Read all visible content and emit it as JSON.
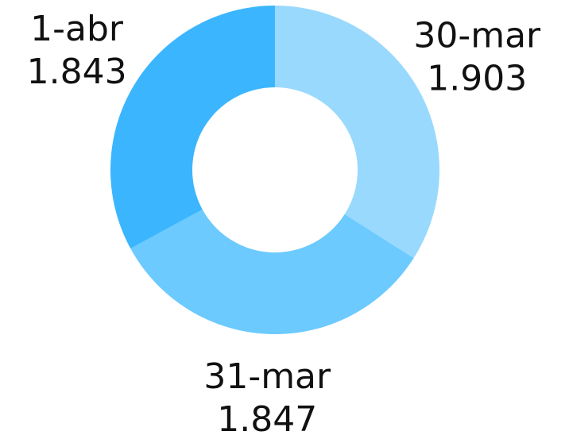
{
  "chart_data": {
    "type": "pie",
    "categories": [
      "30-mar",
      "31-mar",
      "1-abr"
    ],
    "values": [
      1903,
      1847,
      1843
    ],
    "value_labels": [
      "1.903",
      "1.847",
      "1.843"
    ],
    "colors": [
      "#99d9fd",
      "#6ccafe",
      "#3bb6fe"
    ]
  }
}
